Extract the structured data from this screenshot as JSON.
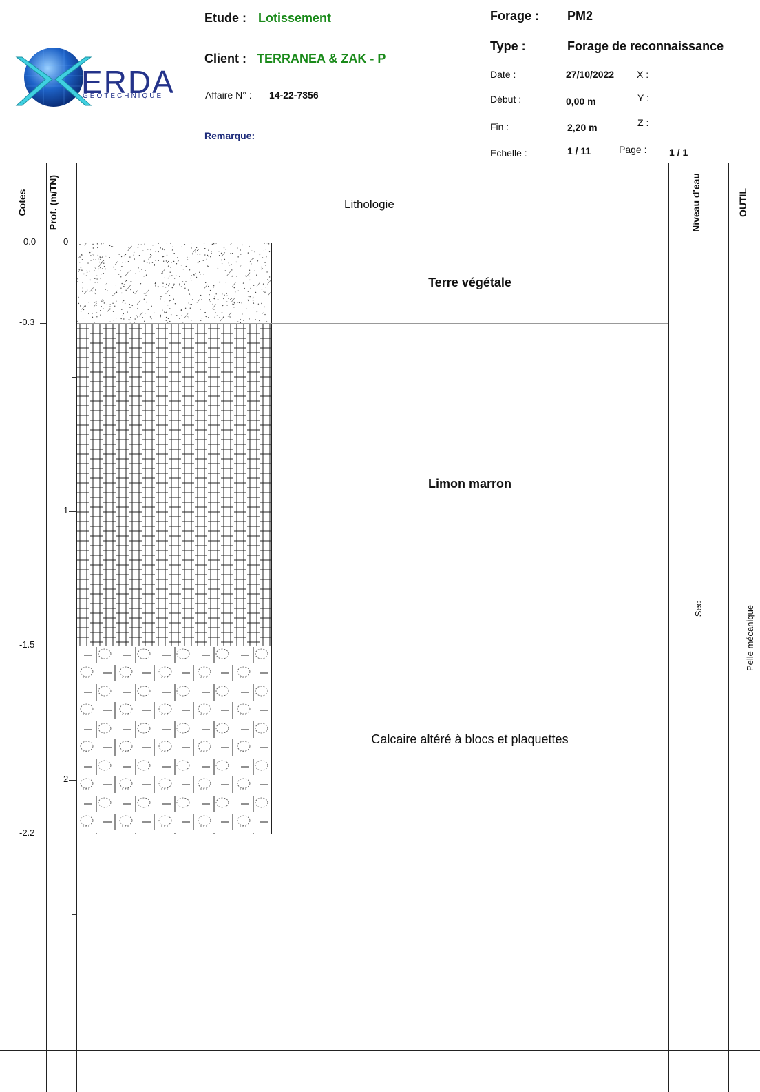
{
  "header": {
    "logo": {
      "name": "ERDA",
      "subtitle": "GEOTECHNIQUE"
    },
    "etude_label": "Etude :",
    "etude_value": "Lotissement",
    "client_label": "Client :",
    "client_value": "TERRANEA & ZAK - P",
    "affaire_label": "Affaire N° :",
    "affaire_value": "14-22-7356",
    "remarque_label": "Remarque:",
    "forage_label": "Forage :",
    "forage_value": "PM2",
    "type_label": "Type :",
    "type_value": "Forage de reconnaissance",
    "date_label": "Date :",
    "date_value": "27/10/2022",
    "x_label": "X :",
    "debut_label": "Début :",
    "debut_value": "0,00 m",
    "y_label": "Y :",
    "fin_label": "Fin :",
    "fin_value": "2,20 m",
    "z_label": "Z :",
    "echelle_label": "Echelle :",
    "echelle_value": "1 / 11",
    "page_label": "Page :",
    "page_value": "1 / 1"
  },
  "columns": {
    "cotes": "Cotes",
    "prof": "Prof. (m/TN)",
    "lithologie": "Lithologie",
    "niveau": "Niveau d'eau",
    "outil": "OUTIL"
  },
  "cotes_labels": [
    "0.0",
    "-0.3",
    "-1.5",
    "-2.2"
  ],
  "prof_labels": [
    "0",
    "1",
    "2"
  ],
  "layers": [
    {
      "name": "Terre végétale",
      "top": 0.0,
      "bottom": 0.3,
      "pattern": "dots"
    },
    {
      "name": "Limon marron",
      "top": 0.3,
      "bottom": 1.5,
      "pattern": "grid"
    },
    {
      "name": "Calcaire altéré à blocs et plaquettes",
      "top": 1.5,
      "bottom": 2.2,
      "pattern": "blocks"
    }
  ],
  "water_level": "Sec",
  "tool": "Pelle mécanique"
}
